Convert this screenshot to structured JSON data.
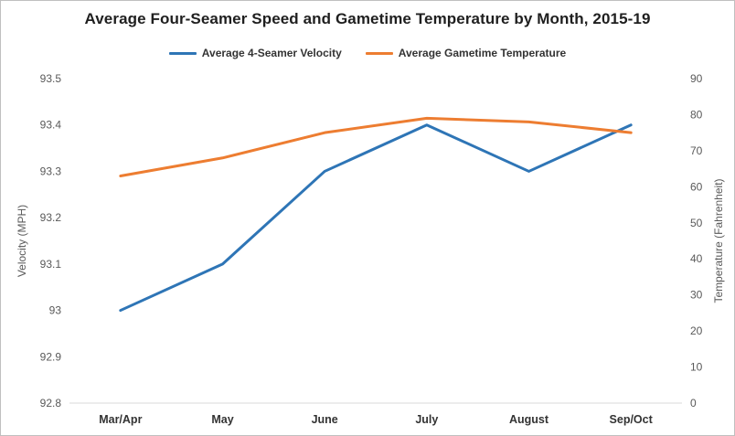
{
  "chart_data": {
    "type": "line",
    "title": "Average Four-Seamer Speed and Gametime Temperature by Month, 2015-19",
    "categories": [
      "Mar/Apr",
      "May",
      "June",
      "July",
      "August",
      "Sep/Oct"
    ],
    "series": [
      {
        "id": "velocity",
        "name": "Average 4-Seamer Velocity",
        "axis": "left",
        "color": "#2E75B6",
        "values": [
          93.0,
          93.1,
          93.3,
          93.4,
          93.3,
          93.4
        ]
      },
      {
        "id": "temperature",
        "name": "Average Gametime Temperature",
        "axis": "right",
        "color": "#ED7D31",
        "values": [
          63,
          68,
          75,
          79,
          78,
          75
        ]
      }
    ],
    "axes": {
      "left": {
        "title": "Velocity (MPH)",
        "min": 92.8,
        "max": 93.5,
        "ticks": [
          92.8,
          92.9,
          93,
          93.1,
          93.2,
          93.3,
          93.4,
          93.5
        ]
      },
      "right": {
        "title": "Temperature (Fahrenheit)",
        "min": 0,
        "max": 90,
        "ticks": [
          0,
          10,
          20,
          30,
          40,
          50,
          60,
          70,
          80,
          90
        ]
      }
    },
    "legend_position": "top",
    "grid": false,
    "axis_line_color": "#d9d9d9"
  }
}
